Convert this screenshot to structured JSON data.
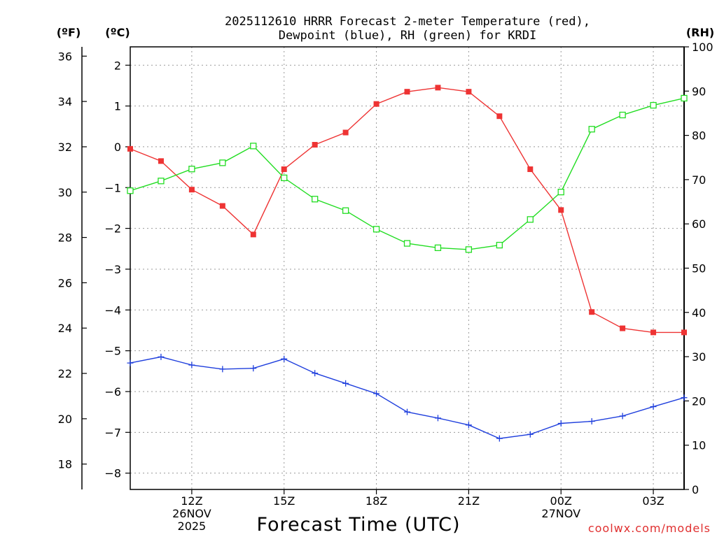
{
  "chart_data": {
    "type": "line",
    "title_lines": [
      "2025112610 HRRR Forecast 2-meter Temperature (red),",
      "Dewpoint (blue), RH (green) for KRDI"
    ],
    "units": {
      "fahrenheit": "(ºF)",
      "celsius": "(ºC)",
      "rh": "(RH)"
    },
    "xlabel": "Forecast Time (UTC)",
    "credit": "coolwx.com/models",
    "x_range_hours": [
      10,
      28
    ],
    "x_ticks": [
      {
        "hour": 12,
        "lines": [
          "12Z",
          "26NOV",
          "2025"
        ]
      },
      {
        "hour": 15,
        "lines": [
          "15Z"
        ]
      },
      {
        "hour": 18,
        "lines": [
          "18Z"
        ]
      },
      {
        "hour": 21,
        "lines": [
          "21Z"
        ]
      },
      {
        "hour": 24,
        "lines": [
          "00Z",
          "27NOV"
        ]
      },
      {
        "hour": 27,
        "lines": [
          "03Z"
        ]
      }
    ],
    "celsius_axis": {
      "min": -8.4,
      "max": 2.45,
      "ticks": [
        "2",
        "1",
        "0",
        "−1",
        "−2",
        "−3",
        "−4",
        "−5",
        "−6",
        "−7",
        "−8"
      ]
    },
    "fahrenheit_axis": {
      "ticks": [
        "36",
        "34",
        "32",
        "30",
        "28",
        "26",
        "24",
        "22",
        "20",
        "18"
      ]
    },
    "rh_axis": {
      "min": 0,
      "max": 100,
      "ticks": [
        "100",
        "90",
        "80",
        "70",
        "60",
        "50",
        "40",
        "30",
        "20",
        "10",
        "0"
      ]
    },
    "hours": [
      10,
      11,
      12,
      13,
      14,
      15,
      16,
      17,
      18,
      19,
      20,
      21,
      22,
      23,
      24,
      25,
      26,
      27,
      28
    ],
    "series": [
      {
        "name": "Temperature (°C)",
        "axis": "celsius",
        "color": "#ee3333",
        "marker": "filled-square",
        "values": [
          -0.05,
          -0.35,
          -1.05,
          -1.45,
          -2.15,
          -0.55,
          0.05,
          0.35,
          1.05,
          1.35,
          1.45,
          1.35,
          0.75,
          -0.55,
          -1.55,
          -4.05,
          -4.45,
          -4.55,
          -4.55
        ]
      },
      {
        "name": "Dewpoint (°C)",
        "axis": "celsius",
        "color": "#1f3fdd",
        "marker": "plus",
        "values": [
          -5.3,
          -5.15,
          -5.35,
          -5.45,
          -5.43,
          -5.2,
          -5.55,
          -5.8,
          -6.05,
          -6.5,
          -6.65,
          -6.82,
          -7.15,
          -7.05,
          -6.78,
          -6.73,
          -6.6,
          -6.37,
          -6.15
        ]
      },
      {
        "name": "RH (%)",
        "axis": "rh",
        "color": "#22dd22",
        "marker": "open-square",
        "values": [
          67.5,
          69.7,
          72.4,
          73.8,
          77.6,
          70.4,
          65.6,
          63.0,
          58.8,
          55.6,
          54.6,
          54.2,
          55.2,
          61.0,
          67.2,
          81.4,
          84.6,
          86.8,
          88.4
        ]
      }
    ]
  }
}
